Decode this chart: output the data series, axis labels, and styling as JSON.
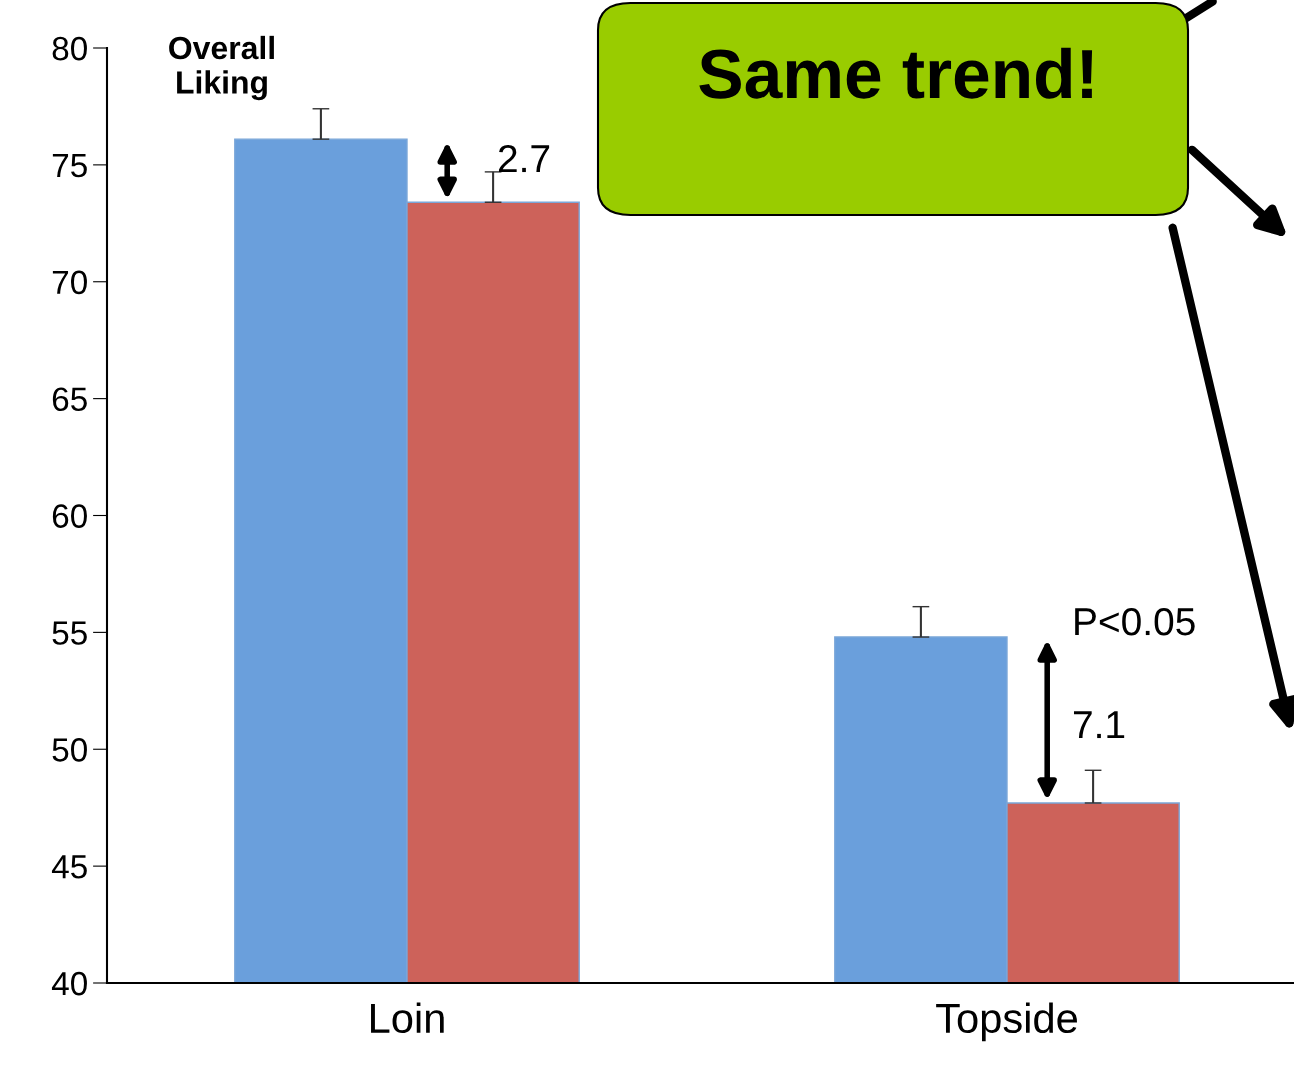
{
  "chart_data": {
    "type": "bar",
    "categories": [
      "Loin",
      "Topside"
    ],
    "series": [
      {
        "color": "#6a9fdc",
        "values": [
          76.1,
          54.8
        ],
        "errors": [
          [
            76.1,
            77.4
          ],
          [
            54.8,
            56.1
          ]
        ]
      },
      {
        "color": "#cd625a",
        "values": [
          73.4,
          47.7
        ],
        "errors": [
          [
            73.4,
            74.7
          ],
          [
            47.7,
            49.1
          ]
        ]
      }
    ],
    "ylim": [
      40,
      80
    ],
    "yticks": [
      40,
      45,
      50,
      55,
      60,
      65,
      70,
      75,
      80
    ],
    "grid": false,
    "legend": false,
    "annotations": [
      "Overall Liking",
      "Same trend!",
      "2.7",
      "P<0.05",
      "7.1"
    ]
  }
}
